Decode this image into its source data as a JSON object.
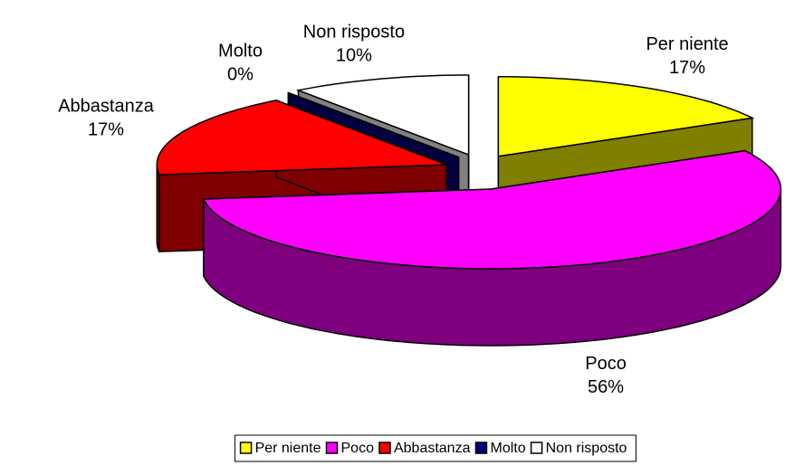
{
  "chart_data": {
    "type": "pie3d",
    "categories": [
      "Per niente",
      "Poco",
      "Abbastanza",
      "Molto",
      "Non risposto"
    ],
    "values": [
      17,
      56,
      17,
      0,
      10
    ],
    "value_labels": [
      "17%",
      "56%",
      "17%",
      "0%",
      "10%"
    ],
    "colors": [
      "#ffff00",
      "#ff00ff",
      "#ff0000",
      "#000080",
      "#ffffff"
    ],
    "legend": "bottom"
  }
}
